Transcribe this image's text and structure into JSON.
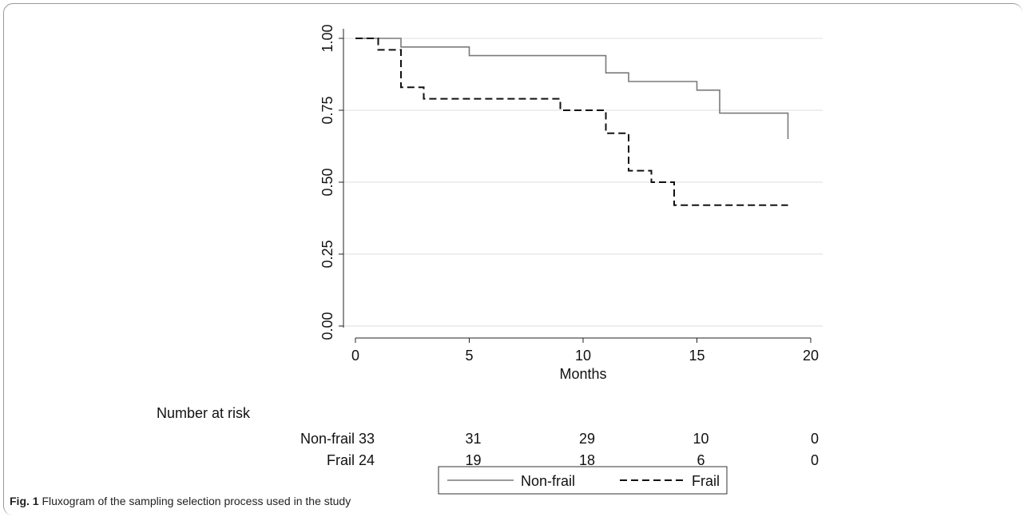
{
  "chart_data": {
    "type": "line",
    "step": true,
    "title": "",
    "xlabel": "Months",
    "ylabel": "",
    "xlim": [
      0,
      20
    ],
    "ylim": [
      0,
      1
    ],
    "xticks": [
      "0",
      "5",
      "10",
      "15",
      "20"
    ],
    "yticks": [
      "0.00",
      "0.25",
      "0.50",
      "0.75",
      "1.00"
    ],
    "grid": "horizontal",
    "series": [
      {
        "name": "Non-frail",
        "style": "solid",
        "color": "#7a7a7a",
        "x": [
          0,
          2,
          5,
          11,
          12,
          15,
          16,
          19
        ],
        "y": [
          1.0,
          0.97,
          0.94,
          0.88,
          0.85,
          0.82,
          0.74,
          0.65
        ]
      },
      {
        "name": "Frail",
        "style": "dashed",
        "color": "#111111",
        "x": [
          0,
          1,
          2,
          3,
          9,
          11,
          12,
          13,
          14,
          19
        ],
        "y": [
          1.0,
          0.96,
          0.83,
          0.79,
          0.75,
          0.67,
          0.54,
          0.5,
          0.42,
          0.42
        ]
      }
    ],
    "risk_table": {
      "title": "Number at risk",
      "rows": [
        {
          "label": "Non-frail",
          "values": [
            "33",
            "31",
            "29",
            "10",
            "0"
          ]
        },
        {
          "label": "Frail",
          "values": [
            "24",
            "19",
            "18",
            "6",
            "0"
          ]
        }
      ]
    },
    "legend": {
      "position": "bottom",
      "entries": [
        "Non-frail",
        "Frail"
      ]
    }
  },
  "caption": {
    "label": "Fig. 1",
    "text": " Fluxogram of the sampling selection process used in the study"
  },
  "colors": {
    "grid": "#dddddd",
    "axis": "#222222"
  }
}
